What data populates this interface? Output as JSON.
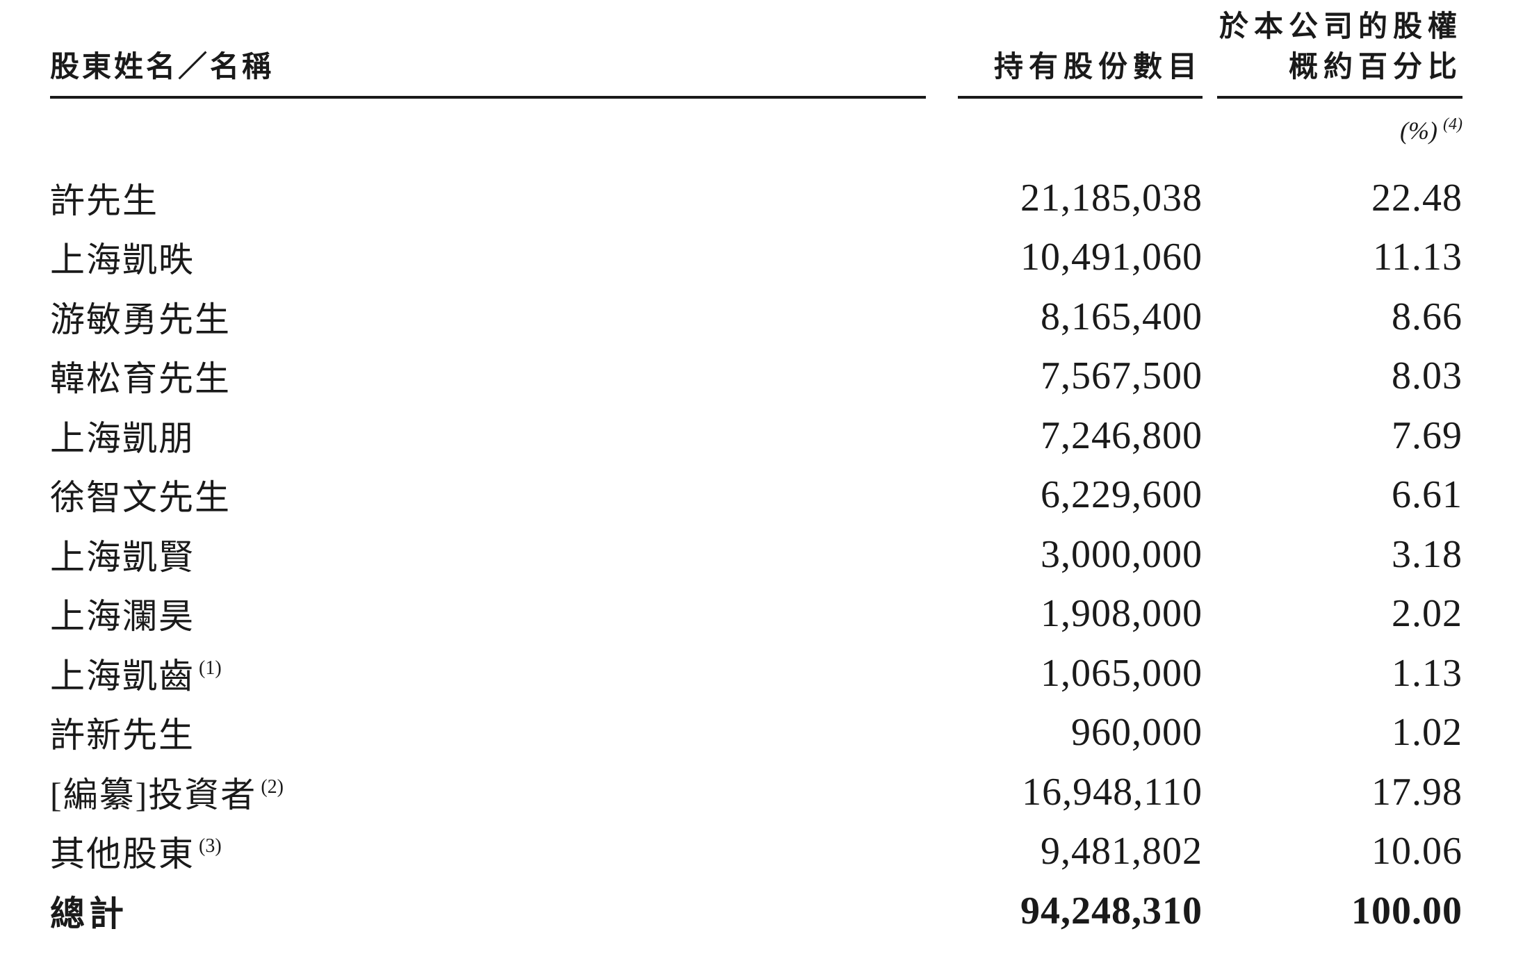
{
  "table": {
    "header": {
      "name_col": "股東姓名／名稱",
      "shares_col": "持有股份數目",
      "percent_col_line1": "於本公司的股權",
      "percent_col_line2": "概約百分比",
      "percent_unit": "(%)",
      "percent_unit_note": "(4)"
    },
    "rows": [
      {
        "name": "許先生",
        "note": "",
        "shares": "21,185,038",
        "percent": "22.48"
      },
      {
        "name": "上海凱昳",
        "note": "",
        "shares": "10,491,060",
        "percent": "11.13"
      },
      {
        "name": "游敏勇先生",
        "note": "",
        "shares": "8,165,400",
        "percent": "8.66"
      },
      {
        "name": "韓松育先生",
        "note": "",
        "shares": "7,567,500",
        "percent": "8.03"
      },
      {
        "name": "上海凱朋",
        "note": "",
        "shares": "7,246,800",
        "percent": "7.69"
      },
      {
        "name": "徐智文先生",
        "note": "",
        "shares": "6,229,600",
        "percent": "6.61"
      },
      {
        "name": "上海凱賢",
        "note": "",
        "shares": "3,000,000",
        "percent": "3.18"
      },
      {
        "name": "上海瀾昊",
        "note": "",
        "shares": "1,908,000",
        "percent": "2.02"
      },
      {
        "name": "上海凱齒",
        "note": "(1)",
        "shares": "1,065,000",
        "percent": "1.13"
      },
      {
        "name": "許新先生",
        "note": "",
        "shares": "960,000",
        "percent": "1.02"
      },
      {
        "name": "[編纂]投資者",
        "note": "(2)",
        "shares": "16,948,110",
        "percent": "17.98"
      },
      {
        "name": "其他股東",
        "note": "(3)",
        "shares": "9,481,802",
        "percent": "10.06"
      }
    ],
    "total": {
      "name": "總計",
      "note": "",
      "shares": "94,248,310",
      "percent": "100.00"
    }
  }
}
